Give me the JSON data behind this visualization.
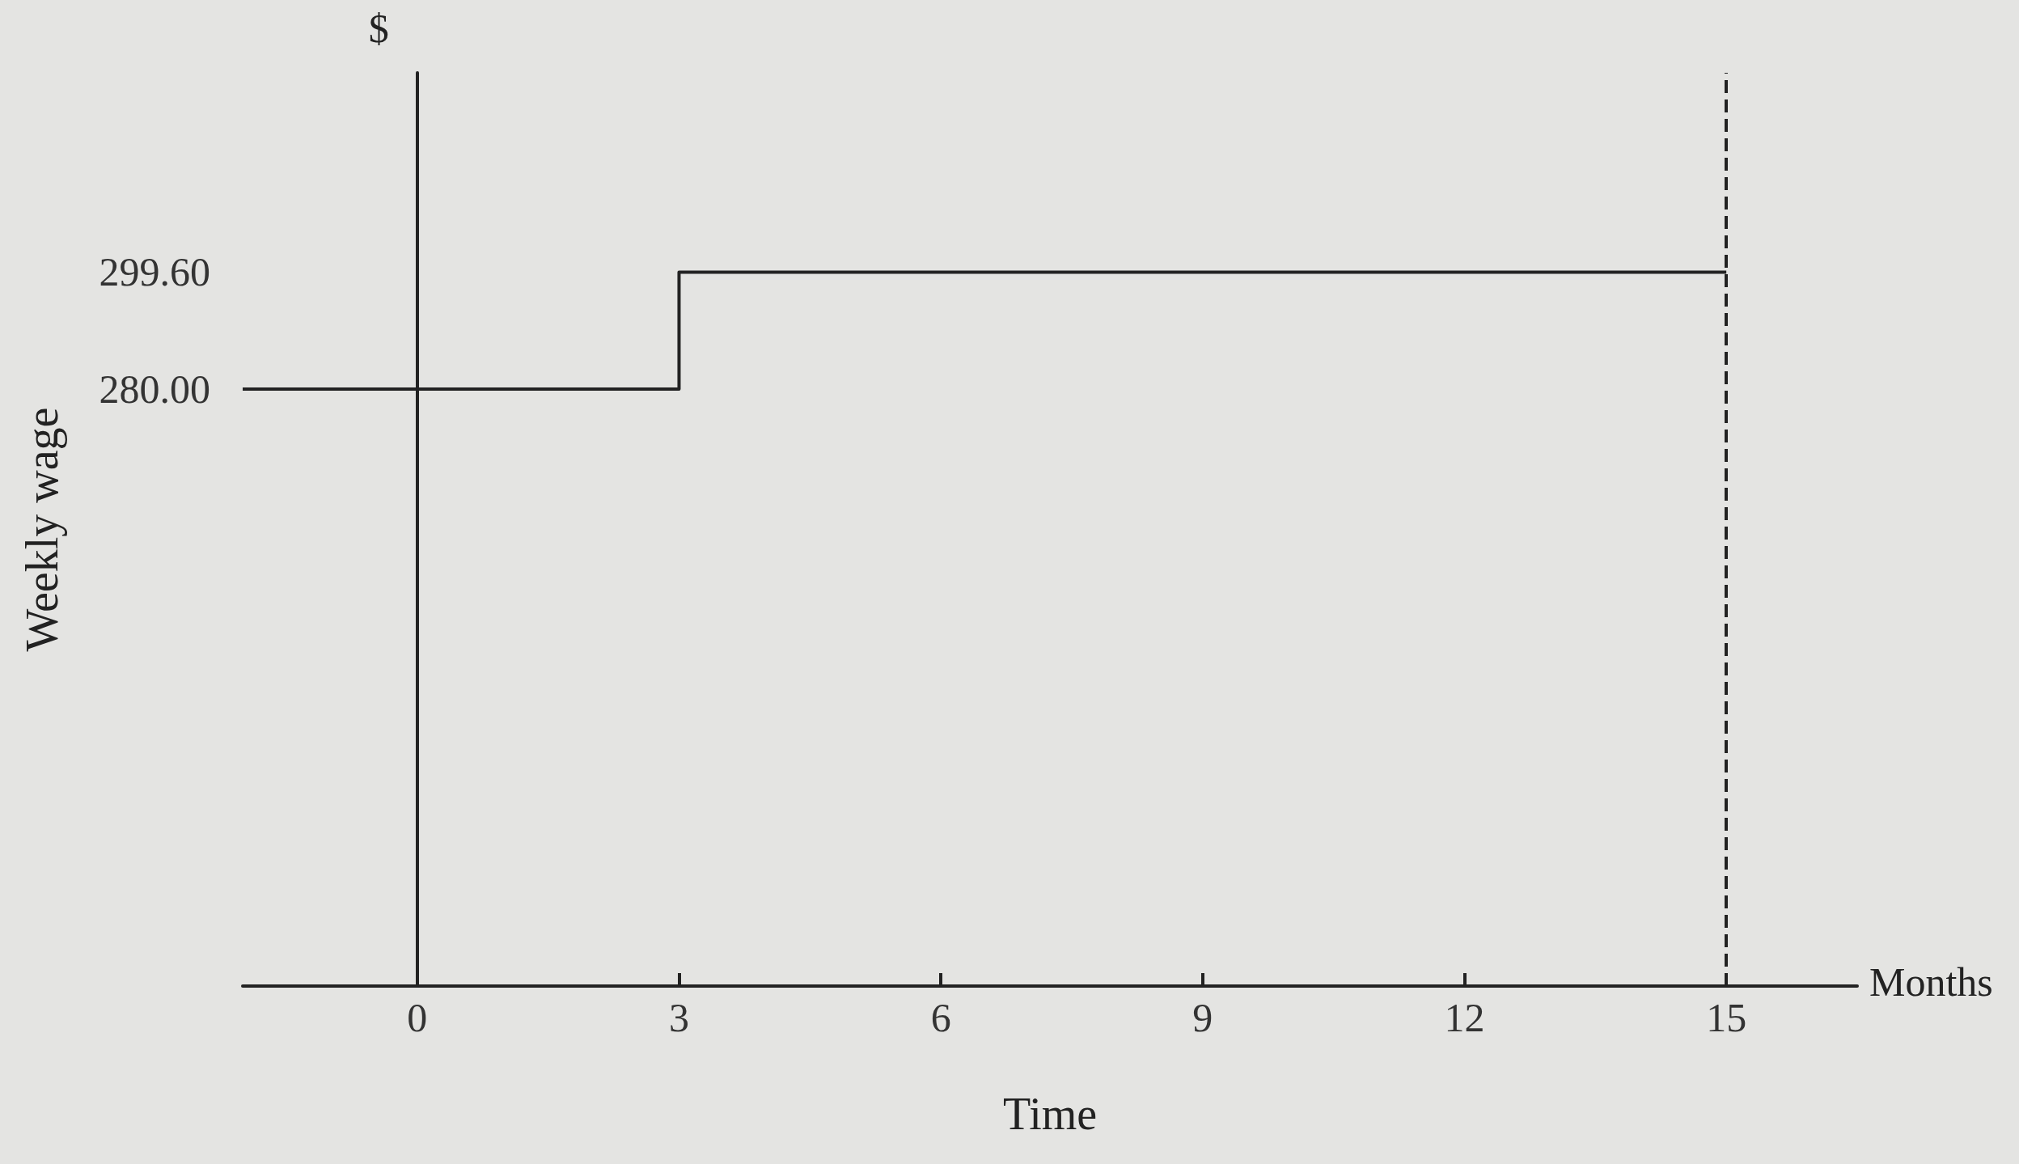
{
  "chart_data": {
    "type": "step",
    "xlabel": "Time",
    "ylabel": "Weekly wage",
    "annotations": [
      "$",
      "Months"
    ],
    "x": [
      -2,
      3,
      15
    ],
    "series": [
      {
        "color": "#222222",
        "values": [
          280,
          299.6,
          299.6
        ]
      }
    ],
    "xlim": [
      -2,
      16.5
    ],
    "xticks": [
      0,
      3,
      6,
      9,
      12,
      15
    ],
    "ylim": [
      180,
      333
    ],
    "yticks": [
      {
        "value": 280,
        "label": "280.00"
      },
      {
        "value": 299.6,
        "label": "299.60"
      }
    ],
    "ref_lines": [
      {
        "axis": "x",
        "value": 15,
        "line_style": "dashed",
        "color": "#222222"
      }
    ],
    "grid": false,
    "marker": "none",
    "line_style": "solid"
  }
}
